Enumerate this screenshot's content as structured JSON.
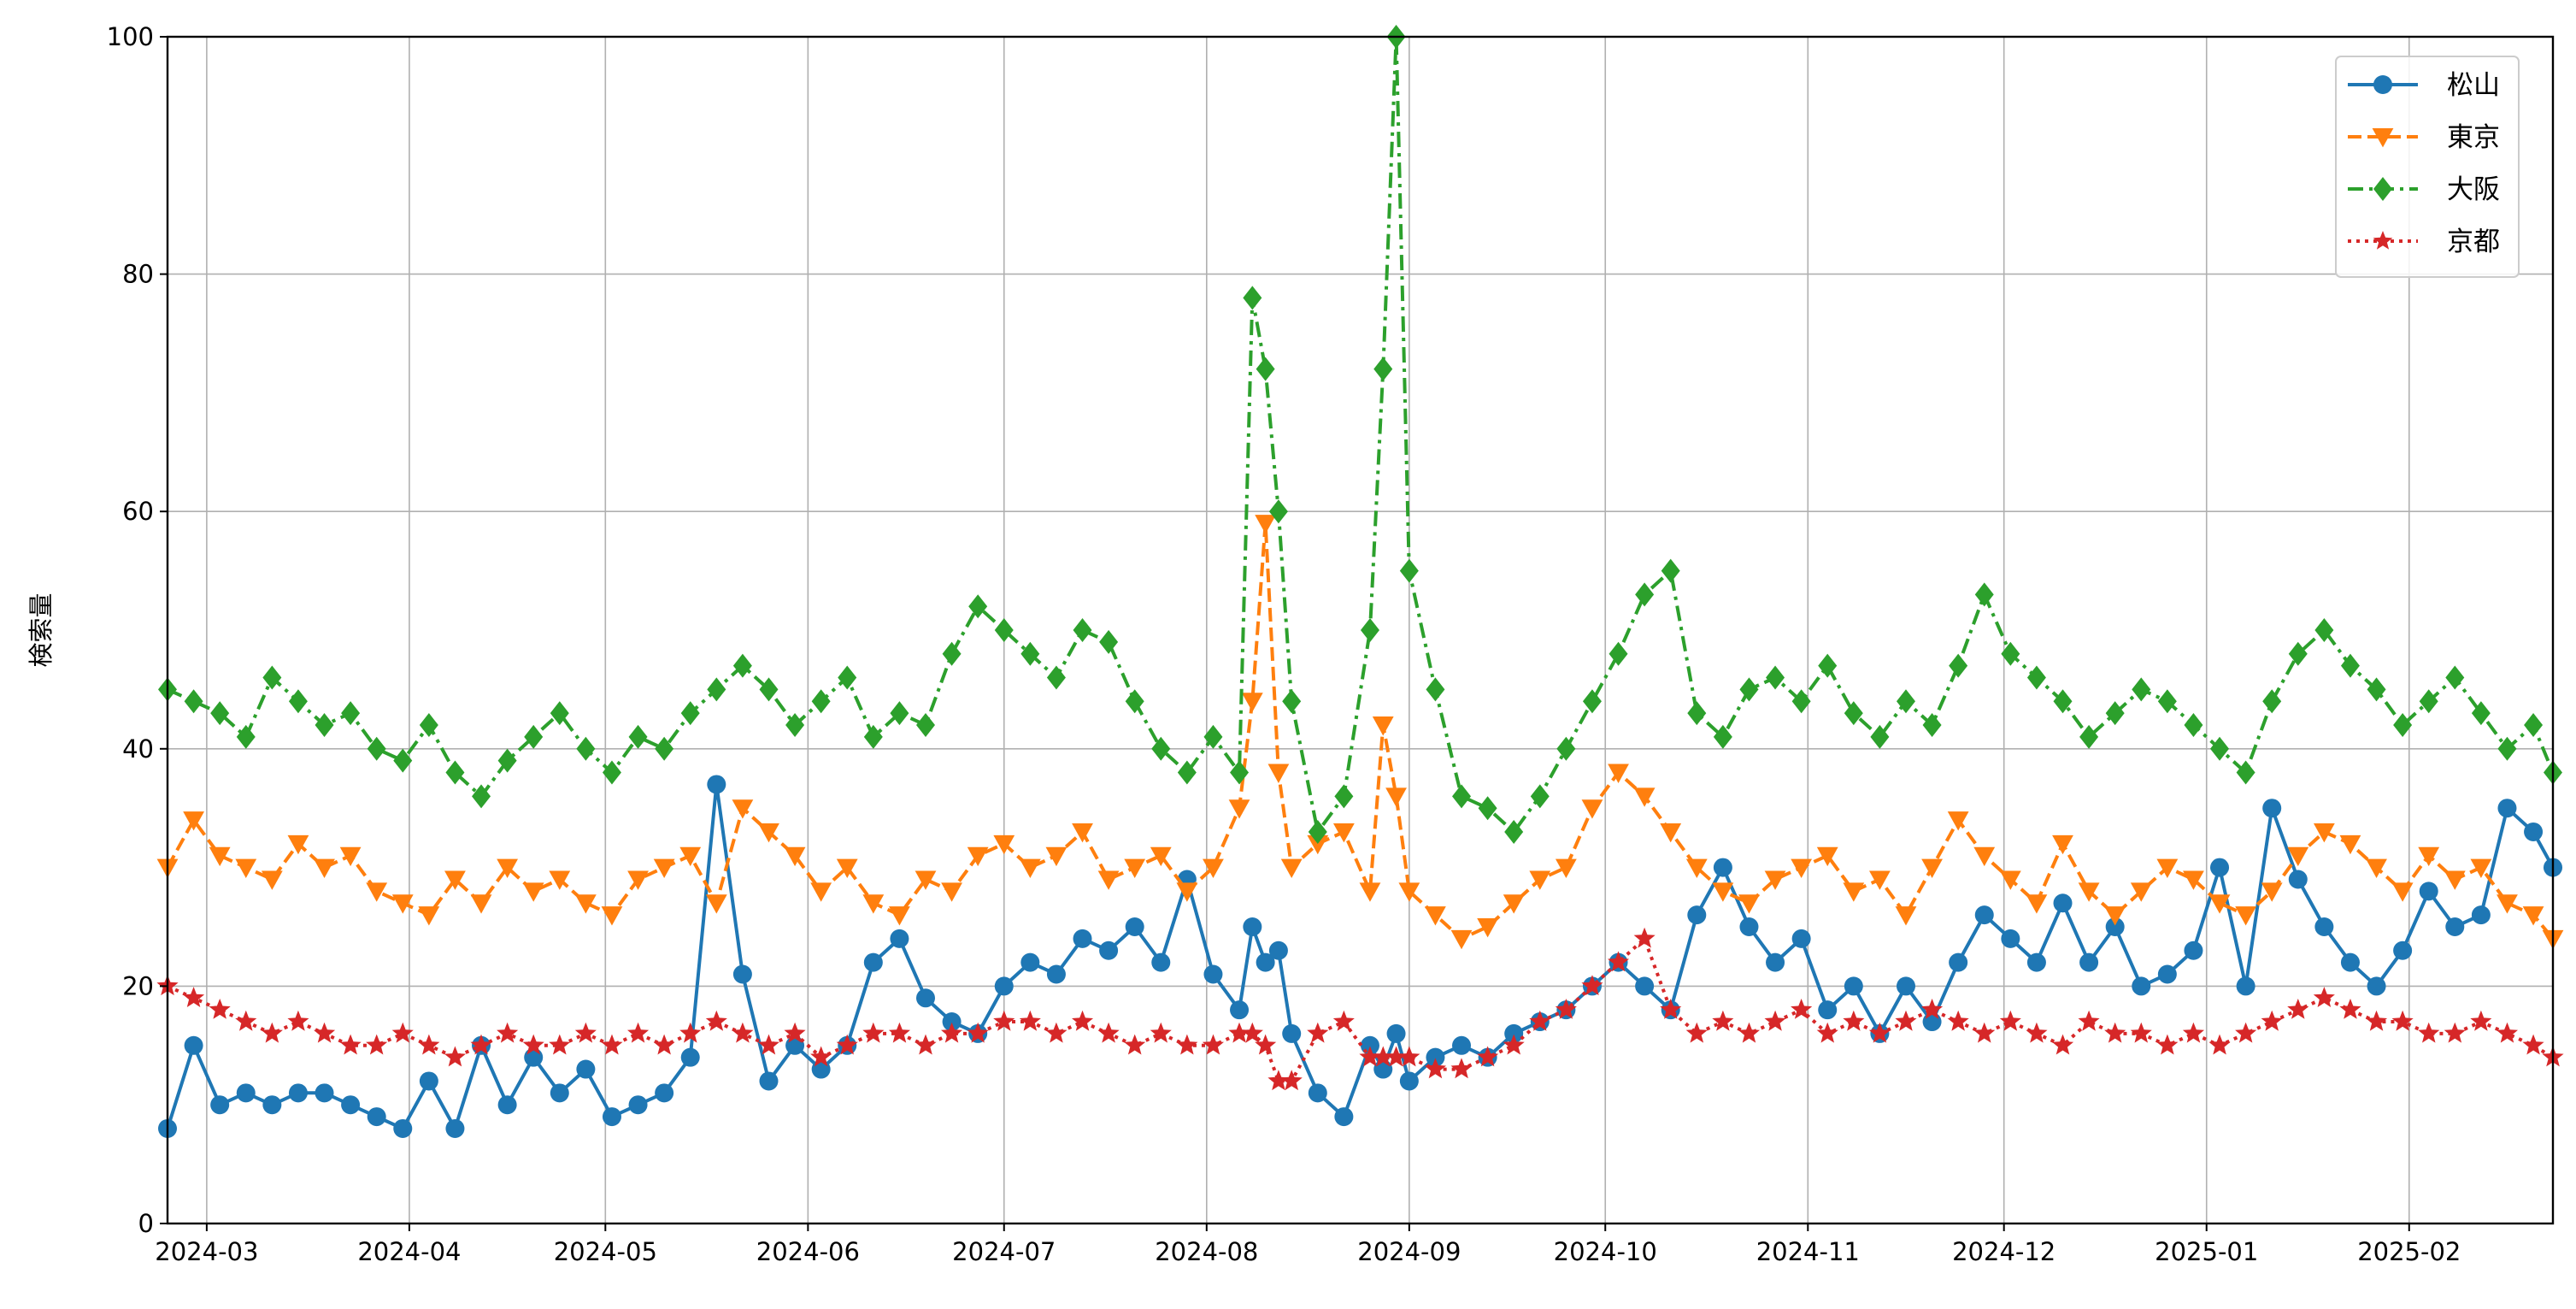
{
  "chart_data": {
    "type": "line",
    "title": "",
    "xlabel": "",
    "ylabel": "検索量",
    "x_range": [
      "2024-02-24",
      "2025-02-23"
    ],
    "ylim": [
      0,
      100
    ],
    "y_ticks": [
      0,
      20,
      40,
      60,
      80,
      100
    ],
    "x_ticks": [
      "2024-03",
      "2024-04",
      "2024-05",
      "2024-06",
      "2024-07",
      "2024-08",
      "2024-09",
      "2024-10",
      "2024-11",
      "2024-12",
      "2025-01",
      "2025-02"
    ],
    "x_tick_dates": [
      "2024-03-01",
      "2024-04-01",
      "2024-05-01",
      "2024-06-01",
      "2024-07-01",
      "2024-08-01",
      "2024-09-01",
      "2024-10-01",
      "2024-11-01",
      "2024-12-01",
      "2025-01-01",
      "2025-02-01"
    ],
    "grid": true,
    "legend_position": "top-right",
    "x": [
      "2024-02-24",
      "2024-02-28",
      "2024-03-03",
      "2024-03-07",
      "2024-03-11",
      "2024-03-15",
      "2024-03-19",
      "2024-03-23",
      "2024-03-27",
      "2024-03-31",
      "2024-04-04",
      "2024-04-08",
      "2024-04-12",
      "2024-04-16",
      "2024-04-20",
      "2024-04-24",
      "2024-04-28",
      "2024-05-02",
      "2024-05-06",
      "2024-05-10",
      "2024-05-14",
      "2024-05-18",
      "2024-05-22",
      "2024-05-26",
      "2024-05-30",
      "2024-06-03",
      "2024-06-07",
      "2024-06-11",
      "2024-06-15",
      "2024-06-19",
      "2024-06-23",
      "2024-06-27",
      "2024-07-01",
      "2024-07-05",
      "2024-07-09",
      "2024-07-13",
      "2024-07-17",
      "2024-07-21",
      "2024-07-25",
      "2024-07-29",
      "2024-08-02",
      "2024-08-06",
      "2024-08-08",
      "2024-08-10",
      "2024-08-12",
      "2024-08-14",
      "2024-08-18",
      "2024-08-22",
      "2024-08-26",
      "2024-08-28",
      "2024-08-30",
      "2024-09-01",
      "2024-09-05",
      "2024-09-09",
      "2024-09-13",
      "2024-09-17",
      "2024-09-21",
      "2024-09-25",
      "2024-09-29",
      "2024-10-03",
      "2024-10-07",
      "2024-10-11",
      "2024-10-15",
      "2024-10-19",
      "2024-10-23",
      "2024-10-27",
      "2024-10-31",
      "2024-11-04",
      "2024-11-08",
      "2024-11-12",
      "2024-11-16",
      "2024-11-20",
      "2024-11-24",
      "2024-11-28",
      "2024-12-02",
      "2024-12-06",
      "2024-12-10",
      "2024-12-14",
      "2024-12-18",
      "2024-12-22",
      "2024-12-26",
      "2024-12-30",
      "2025-01-03",
      "2025-01-07",
      "2025-01-11",
      "2025-01-15",
      "2025-01-19",
      "2025-01-23",
      "2025-01-27",
      "2025-01-31",
      "2025-02-04",
      "2025-02-08",
      "2025-02-12",
      "2025-02-16",
      "2025-02-20",
      "2025-02-23"
    ],
    "series": [
      {
        "name": "松山",
        "color": "#1f77b4",
        "marker": "circle",
        "line_style": "solid",
        "values": [
          8,
          15,
          10,
          11,
          10,
          11,
          11,
          10,
          9,
          8,
          12,
          8,
          15,
          10,
          14,
          11,
          13,
          9,
          10,
          11,
          14,
          37,
          21,
          12,
          15,
          13,
          15,
          22,
          24,
          19,
          17,
          16,
          20,
          22,
          21,
          24,
          23,
          25,
          22,
          29,
          21,
          18,
          25,
          22,
          23,
          16,
          11,
          9,
          15,
          13,
          16,
          12,
          14,
          15,
          14,
          16,
          17,
          18,
          20,
          22,
          20,
          18,
          26,
          30,
          25,
          22,
          24,
          18,
          20,
          16,
          20,
          17,
          22,
          26,
          24,
          22,
          27,
          22,
          25,
          20,
          21,
          23,
          30,
          20,
          35,
          29,
          25,
          22,
          20,
          23,
          28,
          25,
          26,
          35,
          33,
          30
        ]
      },
      {
        "name": "東京",
        "color": "#ff7f0e",
        "marker": "triangle-down",
        "line_style": "dashed",
        "values": [
          30,
          34,
          31,
          30,
          29,
          32,
          30,
          31,
          28,
          27,
          26,
          29,
          27,
          30,
          28,
          29,
          27,
          26,
          29,
          30,
          31,
          27,
          35,
          33,
          31,
          28,
          30,
          27,
          26,
          29,
          28,
          31,
          32,
          30,
          31,
          33,
          29,
          30,
          31,
          28,
          30,
          35,
          44,
          59,
          38,
          30,
          32,
          33,
          28,
          42,
          36,
          28,
          26,
          24,
          25,
          27,
          29,
          30,
          35,
          38,
          36,
          33,
          30,
          28,
          27,
          29,
          30,
          31,
          28,
          29,
          26,
          30,
          34,
          31,
          29,
          27,
          32,
          28,
          26,
          28,
          30,
          29,
          27,
          26,
          28,
          31,
          33,
          32,
          30,
          28,
          31,
          29,
          30,
          27,
          26,
          24
        ]
      },
      {
        "name": "大阪",
        "color": "#2ca02c",
        "marker": "diamond",
        "line_style": "dashdot",
        "values": [
          45,
          44,
          43,
          41,
          46,
          44,
          42,
          43,
          40,
          39,
          42,
          38,
          36,
          39,
          41,
          43,
          40,
          38,
          41,
          40,
          43,
          45,
          47,
          45,
          42,
          44,
          46,
          41,
          43,
          42,
          48,
          52,
          50,
          48,
          46,
          50,
          49,
          44,
          40,
          38,
          41,
          38,
          78,
          72,
          60,
          44,
          33,
          36,
          50,
          72,
          100,
          55,
          45,
          36,
          35,
          33,
          36,
          40,
          44,
          48,
          53,
          55,
          43,
          41,
          45,
          46,
          44,
          47,
          43,
          41,
          44,
          42,
          47,
          53,
          48,
          46,
          44,
          41,
          43,
          45,
          44,
          42,
          40,
          38,
          44,
          48,
          50,
          47,
          45,
          42,
          44,
          46,
          43,
          40,
          42,
          38
        ]
      },
      {
        "name": "京都",
        "color": "#d62728",
        "marker": "star",
        "line_style": "dotted",
        "values": [
          20,
          19,
          18,
          17,
          16,
          17,
          16,
          15,
          15,
          16,
          15,
          14,
          15,
          16,
          15,
          15,
          16,
          15,
          16,
          15,
          16,
          17,
          16,
          15,
          16,
          14,
          15,
          16,
          16,
          15,
          16,
          16,
          17,
          17,
          16,
          17,
          16,
          15,
          16,
          15,
          15,
          16,
          16,
          15,
          12,
          12,
          16,
          17,
          14,
          14,
          14,
          14,
          13,
          13,
          14,
          15,
          17,
          18,
          20,
          22,
          24,
          18,
          16,
          17,
          16,
          17,
          18,
          16,
          17,
          16,
          17,
          18,
          17,
          16,
          17,
          16,
          15,
          17,
          16,
          16,
          15,
          16,
          15,
          16,
          17,
          18,
          19,
          18,
          17,
          17,
          16,
          16,
          17,
          16,
          15,
          14
        ]
      }
    ]
  }
}
